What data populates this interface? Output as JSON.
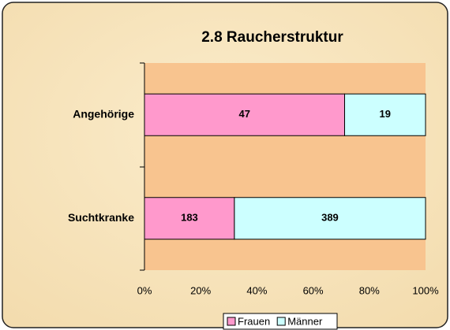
{
  "chart_data": {
    "type": "stacked_percent_bar",
    "title": "2.8  Raucherstruktur",
    "categories": [
      "Angehörige",
      "Suchtkranke"
    ],
    "series": [
      {
        "name": "Frauen",
        "color": "#ff99cc",
        "values": [
          47,
          183
        ]
      },
      {
        "name": "Männer",
        "color": "#ccffff",
        "values": [
          19,
          389
        ]
      }
    ],
    "xlim": [
      0,
      100
    ],
    "xticks": [
      {
        "value": 0,
        "label": "0%"
      },
      {
        "value": 20,
        "label": "20%"
      },
      {
        "value": 40,
        "label": "40%"
      },
      {
        "value": 60,
        "label": "60%"
      },
      {
        "value": 80,
        "label": "80%"
      },
      {
        "value": 100,
        "label": "100%"
      }
    ],
    "legend": "bottom"
  }
}
